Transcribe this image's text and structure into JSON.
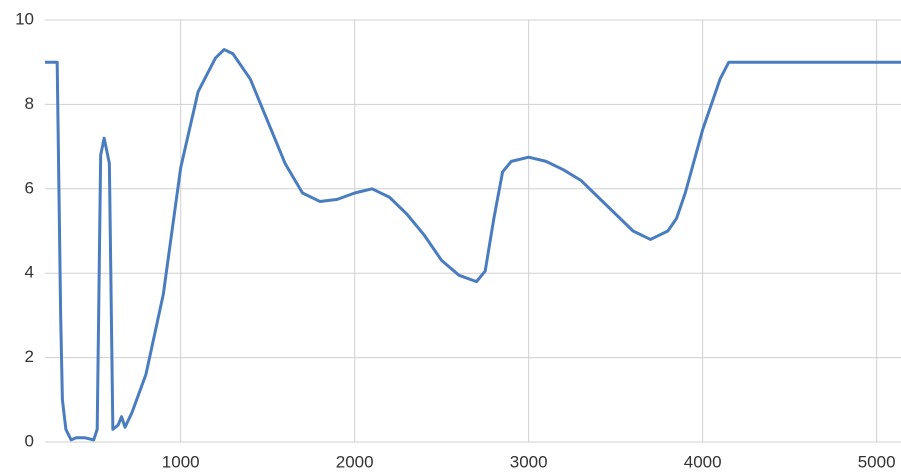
{
  "chart_data": {
    "type": "line",
    "x": [
      220,
      290,
      300,
      310,
      320,
      340,
      370,
      400,
      450,
      500,
      520,
      540,
      560,
      590,
      610,
      640,
      660,
      680,
      720,
      800,
      900,
      1000,
      1100,
      1200,
      1250,
      1300,
      1400,
      1500,
      1600,
      1700,
      1800,
      1900,
      2000,
      2100,
      2200,
      2300,
      2400,
      2500,
      2600,
      2700,
      2750,
      2800,
      2850,
      2900,
      3000,
      3100,
      3200,
      3300,
      3400,
      3500,
      3600,
      3700,
      3800,
      3850,
      3900,
      4000,
      4100,
      4150,
      4300,
      5140
    ],
    "series": [
      {
        "color": "#4a7dbf",
        "values": [
          9,
          9,
          6,
          3,
          1,
          0.3,
          0.05,
          0.1,
          0.1,
          0.05,
          0.3,
          6.8,
          7.2,
          6.6,
          0.3,
          0.4,
          0.6,
          0.35,
          0.7,
          1.6,
          3.5,
          6.5,
          8.3,
          9.1,
          9.3,
          9.2,
          8.6,
          7.6,
          6.6,
          5.9,
          5.7,
          5.75,
          5.9,
          6.0,
          5.8,
          5.4,
          4.9,
          4.3,
          3.95,
          3.8,
          4.05,
          5.3,
          6.4,
          6.65,
          6.75,
          6.65,
          6.45,
          6.2,
          5.8,
          5.4,
          5.0,
          4.8,
          5.0,
          5.3,
          5.9,
          7.4,
          8.6,
          9.0,
          9,
          9
        ]
      }
    ],
    "xlim": [
      220,
      5140
    ],
    "xticks": [
      1000,
      2000,
      3000,
      4000,
      5000
    ],
    "ylim": [
      0,
      10
    ],
    "yticks": [
      0,
      2,
      4,
      6,
      8,
      10
    ],
    "grid": true
  }
}
